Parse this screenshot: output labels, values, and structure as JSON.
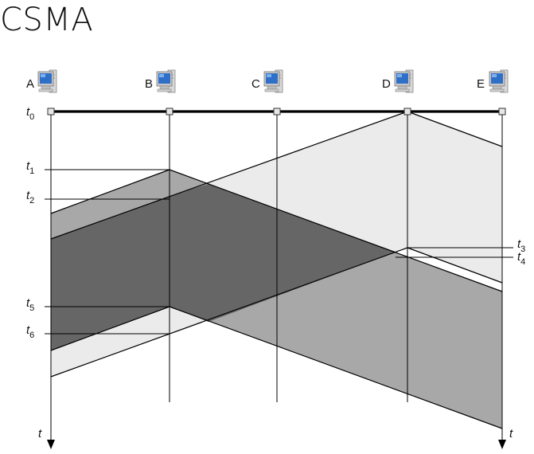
{
  "title": "CSMA",
  "stations": [
    {
      "id": "A",
      "label": "A",
      "icon": "computer-icon"
    },
    {
      "id": "B",
      "label": "B",
      "icon": "computer-icon"
    },
    {
      "id": "C",
      "label": "C",
      "icon": "computer-icon"
    },
    {
      "id": "D",
      "label": "D",
      "icon": "computer-icon"
    },
    {
      "id": "E",
      "label": "E",
      "icon": "computer-icon"
    }
  ],
  "time_marks": [
    {
      "id": "t0",
      "base": "t",
      "sub": "0"
    },
    {
      "id": "t1",
      "base": "t",
      "sub": "1"
    },
    {
      "id": "t2",
      "base": "t",
      "sub": "2"
    },
    {
      "id": "t3",
      "base": "t",
      "sub": "3"
    },
    {
      "id": "t4",
      "base": "t",
      "sub": "4"
    },
    {
      "id": "t5",
      "base": "t",
      "sub": "5"
    },
    {
      "id": "t6",
      "base": "t",
      "sub": "6"
    }
  ],
  "time_axis": {
    "left_label": "t",
    "right_label": "t"
  },
  "colors": {
    "light": "#ebebeb",
    "medium": "#a8a8a8",
    "dark": "#666666",
    "bus": "#000000",
    "monitor_screen": "#2f6fc8"
  }
}
